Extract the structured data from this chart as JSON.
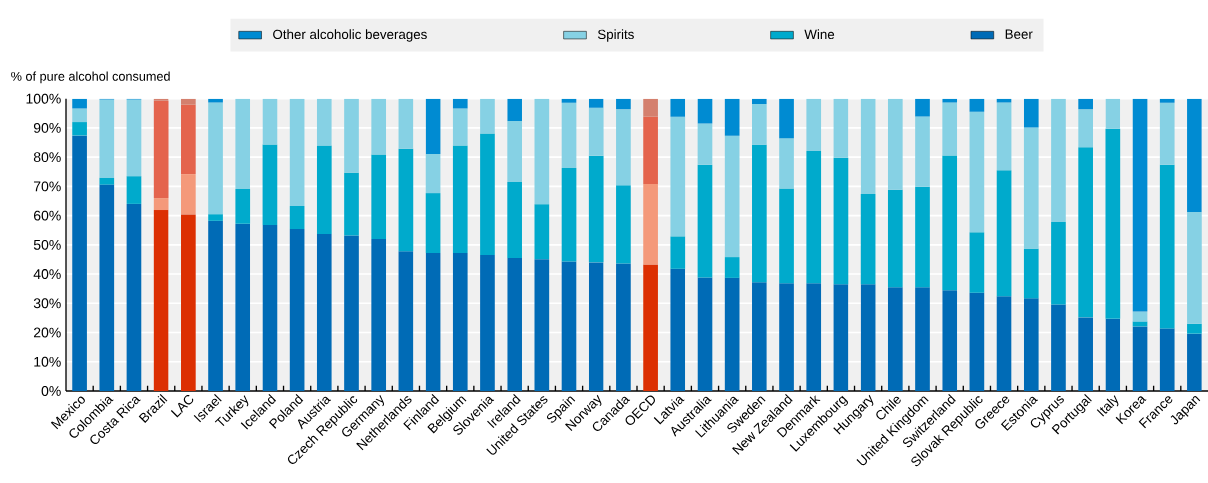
{
  "chart_data": {
    "type": "bar",
    "stacked": true,
    "ylabel": "% of pure alcohol consumed",
    "categories": [
      "Mexico",
      "Colombia",
      "Costa Rica",
      "Brazil",
      "LAC",
      "Israel",
      "Turkey",
      "Iceland",
      "Poland",
      "Austria",
      "Czech Republic",
      "Germany",
      "Netherlands",
      "Finland",
      "Belgium",
      "Slovenia",
      "Ireland",
      "United States",
      "Spain",
      "Norway",
      "Canada",
      "OECD",
      "Latvia",
      "Australia",
      "Lithuania",
      "Sweden",
      "New Zealand",
      "Denmark",
      "Luxembourg",
      "Hungary",
      "Chile",
      "United Kingdom",
      "Switzerland",
      "Slovak Republic",
      "Greece",
      "Estonia",
      "Cyprus",
      "Portugal",
      "Italy",
      "Korea",
      "France",
      "Japan"
    ],
    "series": [
      {
        "name": "Beer",
        "color": "#006bb6",
        "colors": [
          "#006bb6",
          "#006bb6",
          "#006bb6",
          "#dc2f02",
          "#dc2f02",
          "#006bb6",
          "#006bb6",
          "#006bb6",
          "#006bb6",
          "#006bb6",
          "#006bb6",
          "#006bb6",
          "#006bb6",
          "#006bb6",
          "#006bb6",
          "#006bb6",
          "#006bb6",
          "#006bb6",
          "#006bb6",
          "#006bb6",
          "#006bb6",
          "#dc2f02",
          "#006bb6",
          "#006bb6",
          "#006bb6",
          "#006bb6",
          "#006bb6",
          "#006bb6",
          "#006bb6",
          "#006bb6",
          "#006bb6",
          "#006bb6",
          "#006bb6",
          "#006bb6",
          "#006bb6",
          "#006bb6",
          "#006bb6",
          "#006bb6",
          "#006bb6",
          "#006bb6",
          "#006bb6",
          "#006bb6"
        ],
        "values": [
          87.4,
          70.6,
          64.0,
          61.9,
          60.5,
          58.2,
          57.2,
          56.8,
          55.4,
          53.7,
          53.2,
          52.0,
          47.8,
          47.2,
          47.2,
          46.5,
          45.5,
          45.1,
          44.3,
          44.0,
          43.6,
          43.3,
          41.8,
          38.8,
          38.7,
          37.2,
          36.9,
          36.9,
          36.5,
          36.5,
          35.5,
          35.5,
          34.5,
          33.6,
          32.4,
          31.7,
          29.6,
          25.2,
          24.7,
          22.1,
          21.4,
          19.6
        ]
      },
      {
        "name": "Wine",
        "color": "#00aacc",
        "colors": [
          "#00aacc",
          "#00aacc",
          "#00aacc",
          "#f4997a",
          "#f4997a",
          "#00aacc",
          "#00aacc",
          "#00aacc",
          "#00aacc",
          "#00aacc",
          "#00aacc",
          "#00aacc",
          "#00aacc",
          "#00aacc",
          "#00aacc",
          "#00aacc",
          "#00aacc",
          "#00aacc",
          "#00aacc",
          "#00aacc",
          "#00aacc",
          "#f4997a",
          "#00aacc",
          "#00aacc",
          "#00aacc",
          "#00aacc",
          "#00aacc",
          "#00aacc",
          "#00aacc",
          "#00aacc",
          "#00aacc",
          "#00aacc",
          "#00aacc",
          "#00aacc",
          "#00aacc",
          "#00aacc",
          "#00aacc",
          "#00aacc",
          "#00aacc",
          "#00aacc",
          "#00aacc",
          "#00aacc"
        ],
        "values": [
          4.6,
          2.3,
          9.5,
          4.1,
          13.7,
          2.3,
          11.9,
          27.5,
          7.9,
          30.3,
          21.5,
          28.9,
          35.1,
          20.5,
          36.8,
          41.6,
          26.0,
          18.8,
          32.0,
          36.5,
          26.8,
          27.5,
          11.1,
          38.6,
          7.1,
          47.0,
          32.4,
          45.2,
          43.3,
          30.9,
          33.3,
          34.4,
          46.1,
          20.7,
          43.1,
          17.0,
          28.2,
          58.2,
          65.0,
          1.7,
          56.0,
          3.4
        ]
      },
      {
        "name": "Spirits",
        "color": "#86d1e4",
        "colors": [
          "#86d1e4",
          "#86d1e4",
          "#86d1e4",
          "#e4644d",
          "#e4644d",
          "#86d1e4",
          "#86d1e4",
          "#86d1e4",
          "#86d1e4",
          "#86d1e4",
          "#86d1e4",
          "#86d1e4",
          "#86d1e4",
          "#86d1e4",
          "#86d1e4",
          "#86d1e4",
          "#86d1e4",
          "#86d1e4",
          "#86d1e4",
          "#86d1e4",
          "#86d1e4",
          "#e4644d",
          "#86d1e4",
          "#86d1e4",
          "#86d1e4",
          "#86d1e4",
          "#86d1e4",
          "#86d1e4",
          "#86d1e4",
          "#86d1e4",
          "#86d1e4",
          "#86d1e4",
          "#86d1e4",
          "#86d1e4",
          "#86d1e4",
          "#86d1e4",
          "#86d1e4",
          "#86d1e4",
          "#86d1e4",
          "#86d1e4",
          "#86d1e4",
          "#86d1e4"
        ],
        "values": [
          4.6,
          26.8,
          26.2,
          33.3,
          23.7,
          38.2,
          30.9,
          15.7,
          36.7,
          16.0,
          25.3,
          19.1,
          17.1,
          13.4,
          12.6,
          11.9,
          20.9,
          36.1,
          22.3,
          16.4,
          26.0,
          23.0,
          40.9,
          14.1,
          41.5,
          14.0,
          17.2,
          17.9,
          20.2,
          32.6,
          31.2,
          24.0,
          18.1,
          41.2,
          23.2,
          41.4,
          42.2,
          13.0,
          10.3,
          3.3,
          21.2,
          38.2
        ]
      },
      {
        "name": "Other alcoholic beverages",
        "color": "#008bd2",
        "colors": [
          "#008bd2",
          "#008bd2",
          "#008bd2",
          "#d4806e",
          "#d4806e",
          "#008bd2",
          "#008bd2",
          "#008bd2",
          "#008bd2",
          "#008bd2",
          "#008bd2",
          "#008bd2",
          "#008bd2",
          "#008bd2",
          "#008bd2",
          "#008bd2",
          "#008bd2",
          "#008bd2",
          "#008bd2",
          "#008bd2",
          "#008bd2",
          "#d4806e",
          "#008bd2",
          "#008bd2",
          "#008bd2",
          "#008bd2",
          "#008bd2",
          "#008bd2",
          "#008bd2",
          "#008bd2",
          "#008bd2",
          "#008bd2",
          "#008bd2",
          "#008bd2",
          "#008bd2",
          "#008bd2",
          "#008bd2",
          "#008bd2",
          "#008bd2",
          "#008bd2",
          "#008bd2",
          "#008bd2"
        ],
        "values": [
          3.4,
          0.3,
          0.3,
          0.7,
          2.1,
          1.3,
          0,
          0,
          0,
          0,
          0,
          0,
          0,
          18.9,
          3.4,
          0,
          7.6,
          0,
          1.4,
          3.1,
          3.6,
          6.2,
          6.2,
          8.5,
          12.7,
          1.8,
          13.5,
          0,
          0,
          0,
          0,
          6.1,
          1.3,
          4.5,
          1.3,
          9.9,
          0,
          3.6,
          0,
          72.9,
          1.4,
          38.8
        ]
      }
    ],
    "ylim": [
      0,
      100
    ],
    "yticks": [
      {
        "value": 0,
        "label": "0%"
      },
      {
        "value": 10,
        "label": "10%"
      },
      {
        "value": 20,
        "label": "20%"
      },
      {
        "value": 30,
        "label": "30%"
      },
      {
        "value": 40,
        "label": "40%"
      },
      {
        "value": 50,
        "label": "50%"
      },
      {
        "value": 60,
        "label": "60%"
      },
      {
        "value": 70,
        "label": "70%"
      },
      {
        "value": 80,
        "label": "80%"
      },
      {
        "value": 90,
        "label": "90%"
      },
      {
        "value": 100,
        "label": "100%"
      }
    ],
    "grid": "y",
    "legend": "top"
  }
}
